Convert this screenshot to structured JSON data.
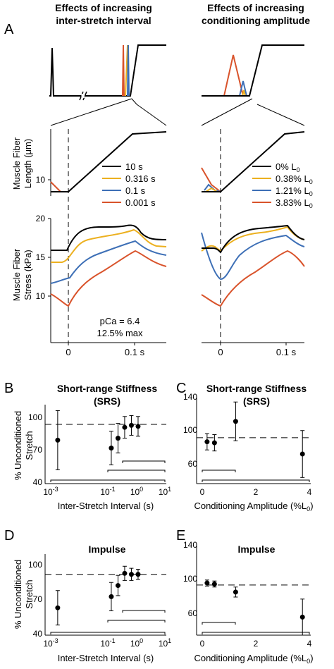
{
  "colors": {
    "black": "#000000",
    "yellow": "#ecb01f",
    "blue": "#3d6fb6",
    "red": "#d9532b"
  },
  "panel_letters": [
    "A",
    "B",
    "C",
    "D",
    "E"
  ],
  "panelA": {
    "left_title": [
      "Effects of increasing",
      "inter-stretch interval"
    ],
    "right_title": [
      "Effects of increasing",
      "conditioning amplitude"
    ],
    "length_ylabel": [
      "Muscle Fiber",
      "Length (μm)"
    ],
    "stress_ylabel": [
      "Muscle Fiber",
      "Stress (kPa)"
    ],
    "length_tick": "10",
    "stress_ticks": [
      "20",
      "15",
      "10"
    ],
    "x_ticks": [
      "0",
      "0.1 s"
    ],
    "left_legend": [
      "10 s",
      "0.316 s",
      "0.1 s",
      "0.001 s"
    ],
    "right_legend": [
      "0% L",
      "0.38% L",
      "1.21% L",
      "3.83% L"
    ],
    "legend_subscript": "0",
    "annotation": [
      "pCa = 6.4",
      "12.5% max"
    ]
  },
  "chart_data": [
    {
      "id": "B",
      "type": "scatter",
      "title": [
        "Short-range Stiffness",
        "(SRS)"
      ],
      "ylabel": [
        "% Unconditioned",
        "Stretch"
      ],
      "xlabel": "Inter-Stretch Interval (s)",
      "xscale": "log",
      "xlim": [
        0.00055,
        10
      ],
      "ylim": [
        40,
        120
      ],
      "yticks": [
        "100",
        "70",
        "40"
      ],
      "xtick_base": "10",
      "xtick_exps": [
        "-3",
        "-1",
        "0",
        "1"
      ],
      "reference_line": 100,
      "points": [
        {
          "x": 0.001,
          "y": 84,
          "err": 30
        },
        {
          "x": 0.1,
          "y": 76,
          "err": 17
        },
        {
          "x": 0.178,
          "y": 86,
          "err": 15
        },
        {
          "x": 0.316,
          "y": 97,
          "err": 11
        },
        {
          "x": 0.562,
          "y": 99,
          "err": 10
        },
        {
          "x": 1.0,
          "y": 98,
          "err": 10
        }
      ]
    },
    {
      "id": "C",
      "type": "scatter",
      "title": [
        "Short-range Stiffness",
        "(SRS)"
      ],
      "xlabel": "Conditioning Amplitude (%L",
      "xlabel_subscript": "0",
      "xlim": [
        -0.1,
        4.1
      ],
      "ylim": [
        55,
        140
      ],
      "yticks": [
        "140",
        "100",
        "60"
      ],
      "xticks": [
        "0",
        "2",
        "4"
      ],
      "reference_line": 100,
      "points": [
        {
          "x": 0.09,
          "y": 96,
          "err": 8
        },
        {
          "x": 0.38,
          "y": 95,
          "err": 8
        },
        {
          "x": 1.21,
          "y": 116,
          "err": 19
        },
        {
          "x": 3.83,
          "y": 84,
          "err": 23
        }
      ]
    },
    {
      "id": "D",
      "type": "scatter",
      "title": [
        "Impulse"
      ],
      "ylabel": [
        "% Unconditioned",
        "Stretch"
      ],
      "xlabel": "Inter-Stretch Interval (s)",
      "xscale": "log",
      "xlim": [
        0.00055,
        10
      ],
      "ylim": [
        40,
        120
      ],
      "yticks": [
        "100",
        "70",
        "40"
      ],
      "xtick_base": "10",
      "xtick_exps": [
        "-3",
        "-1",
        "0",
        "1"
      ],
      "reference_line": 100,
      "points": [
        {
          "x": 0.001,
          "y": 67,
          "err": 17
        },
        {
          "x": 0.1,
          "y": 78,
          "err": 14
        },
        {
          "x": 0.178,
          "y": 89,
          "err": 10
        },
        {
          "x": 0.316,
          "y": 101,
          "err": 7
        },
        {
          "x": 0.562,
          "y": 100,
          "err": 6
        },
        {
          "x": 1.0,
          "y": 100,
          "err": 5
        }
      ]
    },
    {
      "id": "E",
      "type": "scatter",
      "title": [
        "Impulse"
      ],
      "xlabel": "Conditioning Amplitude (%L",
      "xlabel_subscript": "0",
      "xlim": [
        -0.1,
        4.1
      ],
      "ylim": [
        50,
        140
      ],
      "yticks": [
        "140",
        "100",
        "60"
      ],
      "xticks": [
        "0",
        "2",
        "4"
      ],
      "reference_line": 100,
      "points": [
        {
          "x": 0.09,
          "y": 102,
          "err": 3
        },
        {
          "x": 0.38,
          "y": 101,
          "err": 3
        },
        {
          "x": 1.21,
          "y": 93,
          "err": 5
        },
        {
          "x": 3.83,
          "y": 68,
          "err": 18
        }
      ]
    }
  ]
}
